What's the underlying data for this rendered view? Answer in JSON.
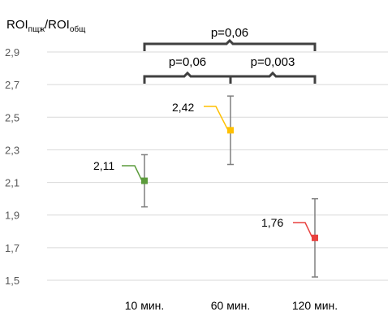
{
  "chart_data": {
    "type": "scatter",
    "ylabel_main": "ROI",
    "ylabel_sub1": "пщж",
    "ylabel_sep": "/ROI",
    "ylabel_sub2": "общ",
    "categories": [
      "10 мин.",
      "60 мин.",
      "120 мин."
    ],
    "ylim": [
      1.5,
      2.9
    ],
    "yticks": [
      "1,5",
      "1,7",
      "1,9",
      "2,1",
      "2,3",
      "2,5",
      "2,7",
      "2,9"
    ],
    "ytick_values": [
      1.5,
      1.7,
      1.9,
      2.1,
      2.3,
      2.5,
      2.7,
      2.9
    ],
    "grid": true,
    "points": [
      {
        "category": "10 мин.",
        "value": 2.11,
        "label": "2,11",
        "error_low": 1.95,
        "error_high": 2.27,
        "color": "#5b9b3b"
      },
      {
        "category": "60 мин.",
        "value": 2.42,
        "label": "2,42",
        "error_low": 2.21,
        "error_high": 2.63,
        "color": "#ffc000"
      },
      {
        "category": "120 мин.",
        "value": 1.76,
        "label": "1,76",
        "error_low": 1.52,
        "error_high": 2.0,
        "color": "#e8413e"
      }
    ],
    "comparisons": [
      {
        "from": "10 мин.",
        "to": "120 мин.",
        "label": "p=0,06"
      },
      {
        "from": "10 мин.",
        "to": "60 мин.",
        "label": "p=0,06"
      },
      {
        "from": "60 мин.",
        "to": "120 мин.",
        "label": "p=0,003"
      }
    ],
    "colors": {
      "grid": "#d9d9d9",
      "error_bar": "#7f7f7f",
      "bracket": "#404040"
    }
  }
}
